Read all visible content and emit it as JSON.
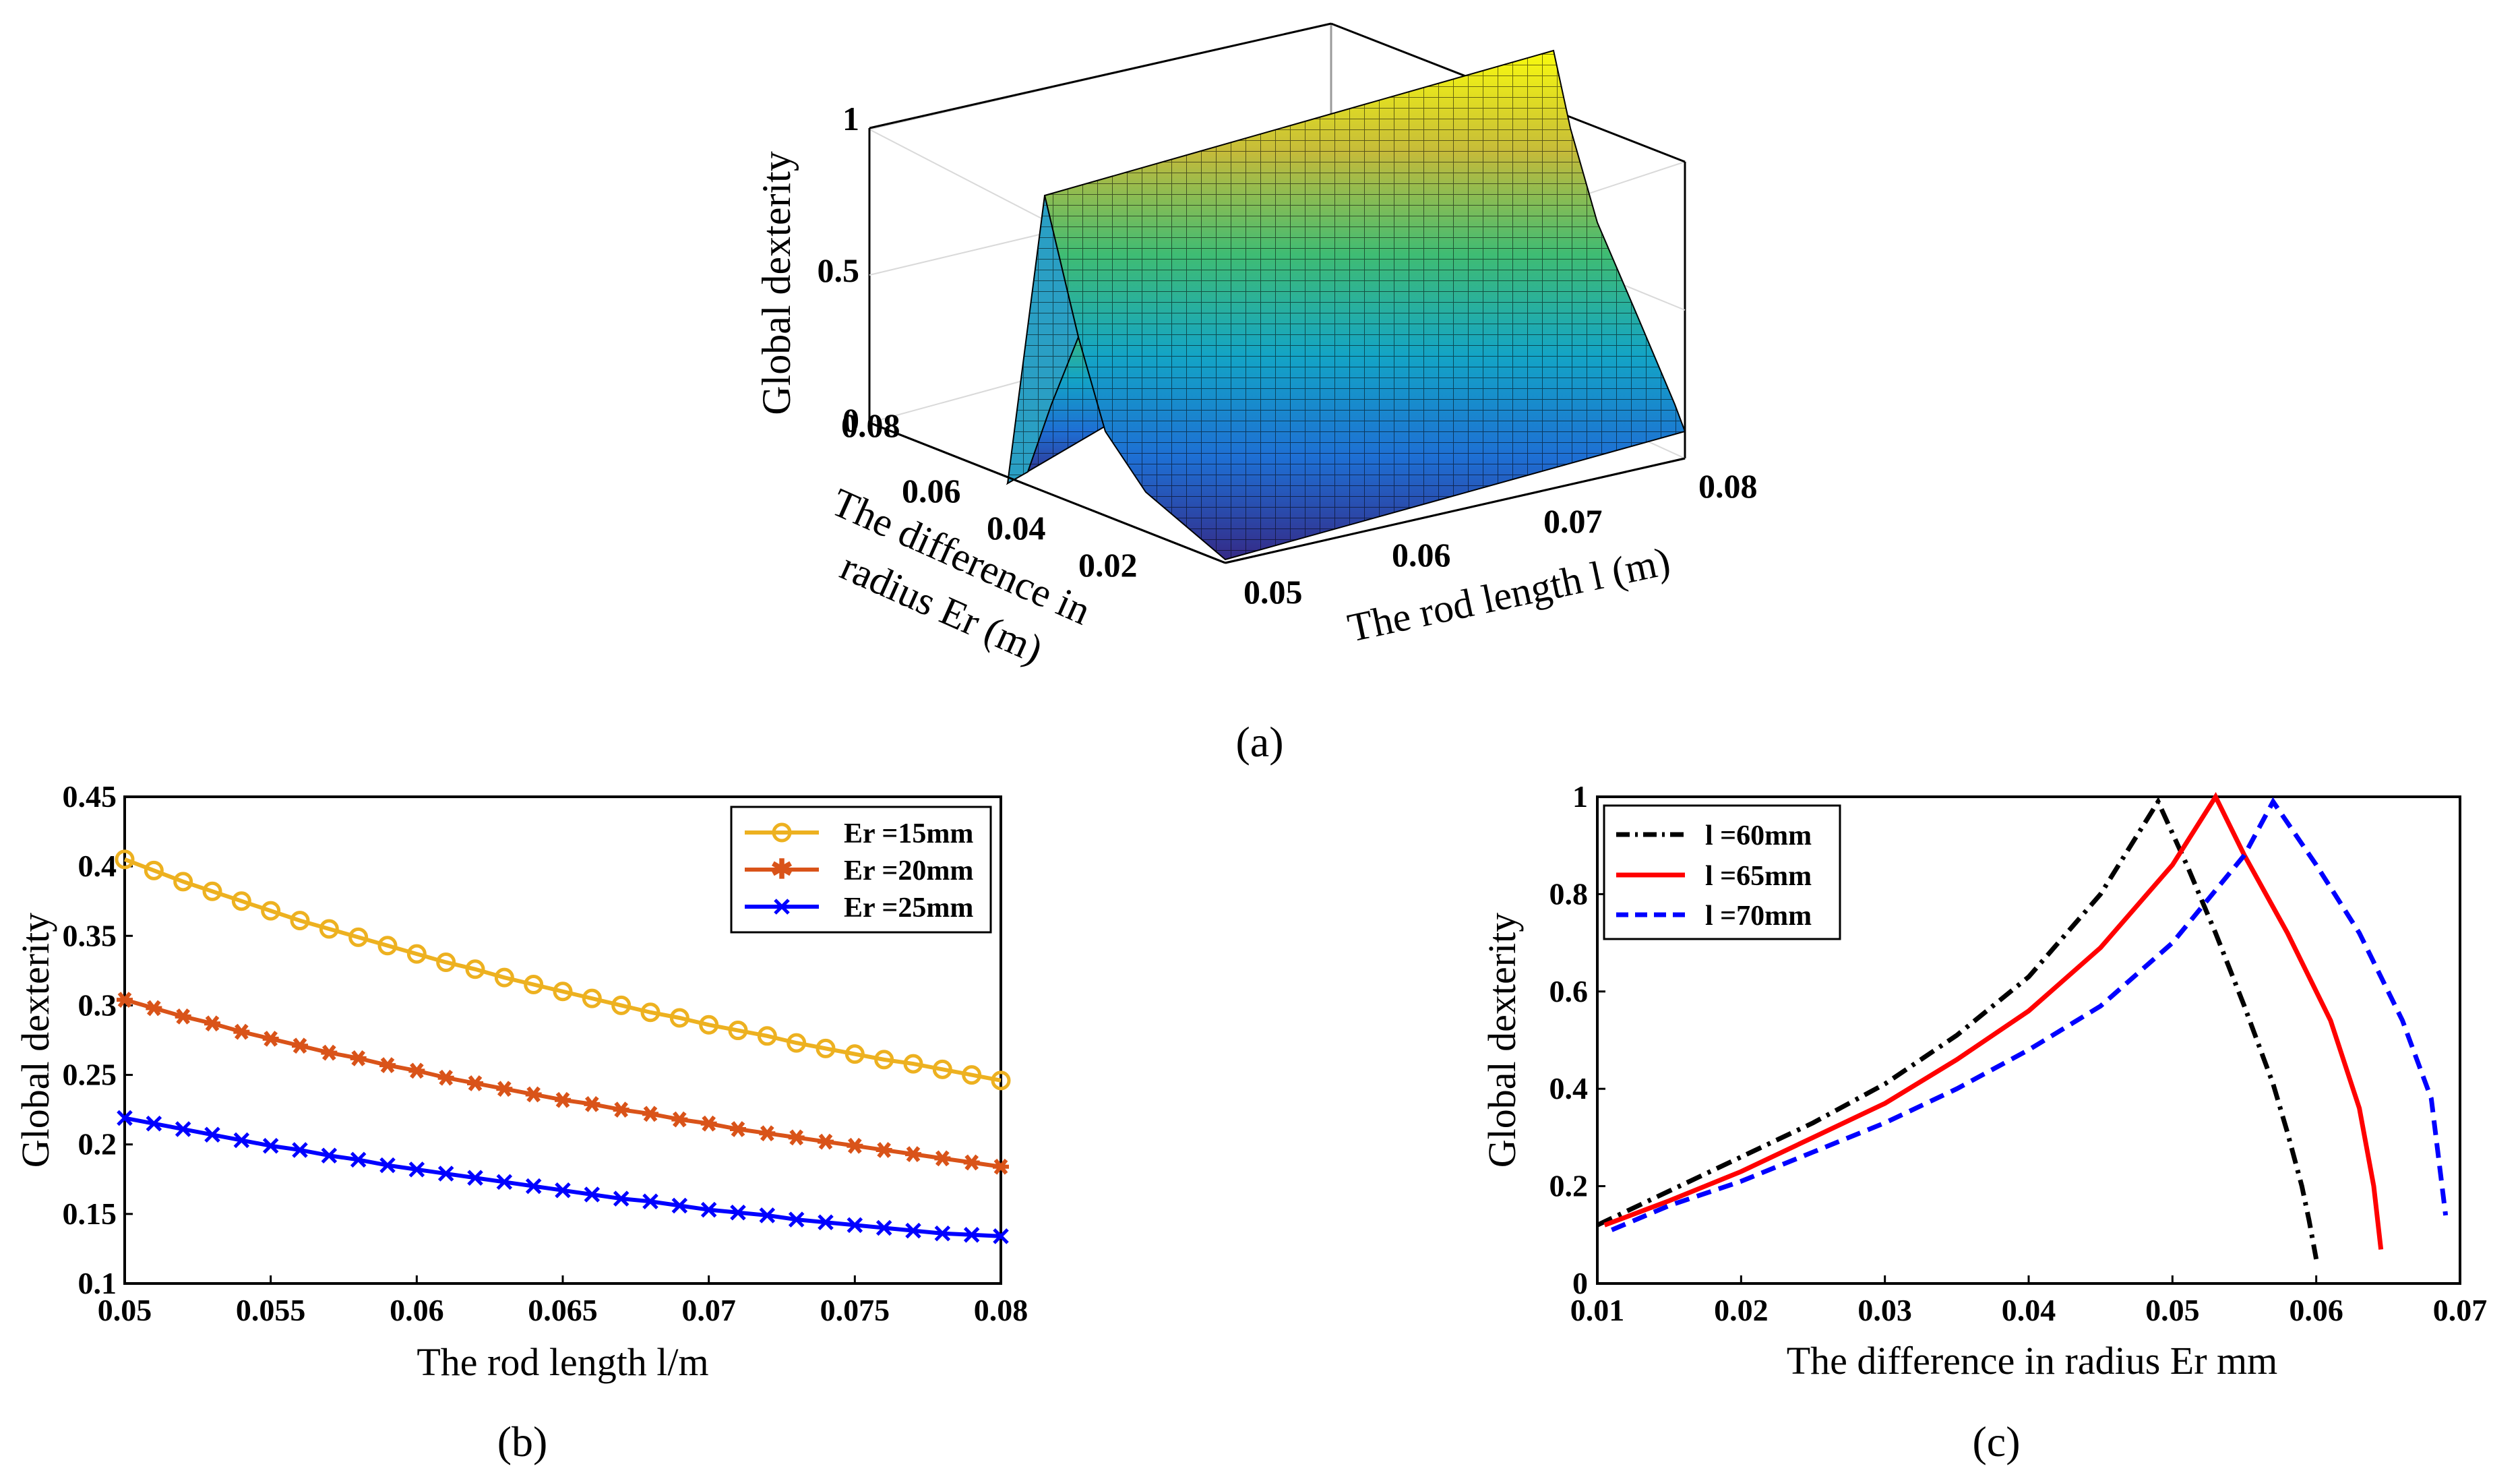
{
  "panels": {
    "a": "(a)",
    "b": "(b)",
    "c": "(c)"
  },
  "chart_data": [
    {
      "id": "a",
      "type": "surface",
      "title": "",
      "zlabel": "Global dexterity",
      "xlabel_line1": "The difference in",
      "xlabel_line2": "radius Er (m)",
      "ylabel": "The rod length l (m)",
      "z_ticks": [
        "0",
        "0.5",
        "1"
      ],
      "x_ticks": [
        "0.08",
        "0.06",
        "0.04",
        "0.02"
      ],
      "y_ticks": [
        "0.05",
        "0.06",
        "0.07",
        "0.08"
      ],
      "x_range": [
        0.01,
        0.08
      ],
      "y_range": [
        0.05,
        0.08
      ],
      "z_range": [
        0,
        1
      ],
      "ridge": {
        "l_start": 0.05,
        "er_peak_at_l_start": 0.045,
        "l_end": 0.08,
        "er_peak_at_l_end": 0.065
      },
      "colormap": "parula"
    },
    {
      "id": "b",
      "type": "line",
      "xlabel": "The rod length l/m",
      "ylabel": "Global dexterity",
      "xlim": [
        0.05,
        0.08
      ],
      "ylim": [
        0.1,
        0.45
      ],
      "x_ticks": [
        "0.05",
        "0.055",
        "0.06",
        "0.065",
        "0.07",
        "0.075",
        "0.08"
      ],
      "y_ticks": [
        "0.1",
        "0.15",
        "0.2",
        "0.25",
        "0.3",
        "0.35",
        "0.4",
        "0.45"
      ],
      "x": [
        0.05,
        0.051,
        0.052,
        0.053,
        0.054,
        0.055,
        0.056,
        0.057,
        0.058,
        0.059,
        0.06,
        0.061,
        0.062,
        0.063,
        0.064,
        0.065,
        0.066,
        0.067,
        0.068,
        0.069,
        0.07,
        0.071,
        0.072,
        0.073,
        0.074,
        0.075,
        0.076,
        0.077,
        0.078,
        0.079,
        0.08
      ],
      "series": [
        {
          "name": "Er =15mm",
          "color": "#EDB120",
          "marker": "circle",
          "values": [
            0.405,
            0.397,
            0.389,
            0.382,
            0.375,
            0.368,
            0.361,
            0.355,
            0.349,
            0.343,
            0.337,
            0.331,
            0.326,
            0.32,
            0.315,
            0.31,
            0.305,
            0.3,
            0.295,
            0.291,
            0.286,
            0.282,
            0.278,
            0.273,
            0.269,
            0.265,
            0.261,
            0.258,
            0.254,
            0.25,
            0.246
          ]
        },
        {
          "name": "Er =20mm",
          "color": "#D95319",
          "marker": "asterisk",
          "values": [
            0.304,
            0.298,
            0.292,
            0.287,
            0.281,
            0.276,
            0.271,
            0.266,
            0.262,
            0.257,
            0.253,
            0.248,
            0.244,
            0.24,
            0.236,
            0.232,
            0.229,
            0.225,
            0.222,
            0.218,
            0.215,
            0.211,
            0.208,
            0.205,
            0.202,
            0.199,
            0.196,
            0.193,
            0.19,
            0.187,
            0.184
          ]
        },
        {
          "name": "Er =25mm",
          "color": "#0000FF",
          "marker": "x",
          "values": [
            0.219,
            0.215,
            0.211,
            0.207,
            0.203,
            0.199,
            0.196,
            0.192,
            0.189,
            0.185,
            0.182,
            0.179,
            0.176,
            0.173,
            0.17,
            0.167,
            0.164,
            0.161,
            0.159,
            0.156,
            0.153,
            0.151,
            0.149,
            0.146,
            0.144,
            0.142,
            0.14,
            0.138,
            0.136,
            0.135,
            0.134
          ]
        }
      ],
      "legend": "top-right"
    },
    {
      "id": "c",
      "type": "line",
      "xlabel": "The  difference in radius Er mm",
      "ylabel": "Global dexterity",
      "xlim": [
        0.01,
        0.07
      ],
      "ylim": [
        0,
        1
      ],
      "x_ticks": [
        "0.01",
        "0.02",
        "0.03",
        "0.04",
        "0.05",
        "0.06",
        "0.07"
      ],
      "y_ticks": [
        "0",
        "0.2",
        "0.4",
        "0.6",
        "0.8",
        "1"
      ],
      "series": [
        {
          "name": "l =60mm",
          "color": "#000000",
          "style": "dashdot",
          "x": [
            0.01,
            0.015,
            0.02,
            0.025,
            0.03,
            0.035,
            0.04,
            0.045,
            0.049,
            0.051,
            0.053,
            0.055,
            0.057,
            0.058,
            0.059,
            0.0595,
            0.06
          ],
          "y": [
            0.12,
            0.19,
            0.26,
            0.33,
            0.41,
            0.51,
            0.63,
            0.8,
            0.99,
            0.86,
            0.72,
            0.57,
            0.41,
            0.31,
            0.2,
            0.13,
            0.05
          ]
        },
        {
          "name": "l =65mm",
          "color": "#FF0000",
          "style": "solid",
          "x": [
            0.0105,
            0.015,
            0.02,
            0.025,
            0.03,
            0.035,
            0.04,
            0.045,
            0.05,
            0.053,
            0.055,
            0.058,
            0.061,
            0.063,
            0.064,
            0.0645
          ],
          "y": [
            0.12,
            0.17,
            0.23,
            0.3,
            0.37,
            0.46,
            0.56,
            0.69,
            0.86,
            1.0,
            0.88,
            0.72,
            0.54,
            0.36,
            0.2,
            0.07
          ]
        },
        {
          "name": "l =70mm",
          "color": "#0000FF",
          "style": "dashed",
          "x": [
            0.011,
            0.015,
            0.02,
            0.025,
            0.03,
            0.035,
            0.04,
            0.045,
            0.05,
            0.055,
            0.057,
            0.06,
            0.063,
            0.066,
            0.068,
            0.069
          ],
          "y": [
            0.11,
            0.16,
            0.21,
            0.27,
            0.33,
            0.4,
            0.48,
            0.57,
            0.7,
            0.88,
            0.99,
            0.86,
            0.72,
            0.54,
            0.38,
            0.14
          ]
        }
      ],
      "legend": "top-left"
    }
  ]
}
